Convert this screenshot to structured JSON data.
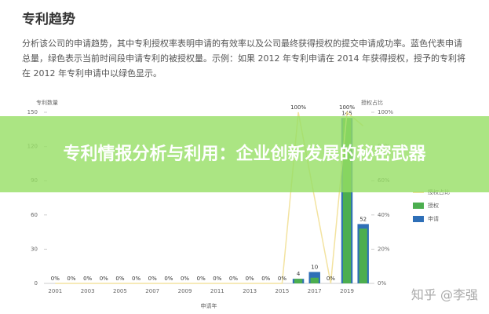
{
  "header": {
    "title": "专利趋势",
    "description": "分析该公司的申请趋势，其中专利授权率表明申请的有效率以及公司最终获得授权的提交申请成功率。蓝色代表申请总量，绿色表示当前时间段申请专利的被授权量。示例：如果 2012 年专利申请在 2014 年获得授权，授予的专利将在 2012 年专利申请中以绿色显示。"
  },
  "banner": "专利情报分析与利用：企业创新发展的秘密武器",
  "watermark": "知乎 @李强",
  "chart_data": {
    "type": "bar-line",
    "ylabel": "专利数量",
    "y2label": "授权占比",
    "xlabel": "申请年",
    "categories": [
      "2001",
      null,
      "2003",
      null,
      "2005",
      null,
      "2007",
      null,
      "2009",
      null,
      "2011",
      null,
      "2013",
      null,
      "2015",
      null,
      "2017",
      null,
      "2019",
      null
    ],
    "ylim": [
      0,
      150
    ],
    "yticks": [
      0,
      30,
      60,
      90,
      120,
      150
    ],
    "y2lim": [
      0,
      100
    ],
    "y2ticks": [
      {
        "value": 0,
        "label": "0%"
      },
      {
        "value": 20,
        "label": "20%"
      },
      {
        "value": 40,
        "label": "40%"
      },
      {
        "value": 60,
        "label": "60%"
      },
      {
        "value": 80,
        "label": "80%"
      },
      {
        "value": 100,
        "label": "100%"
      }
    ],
    "grid": false,
    "series": [
      {
        "name": "授权占比",
        "kind": "line",
        "axis": "y2",
        "color": "#f3e3a0",
        "values": [
          0,
          0,
          0,
          0,
          0,
          0,
          0,
          0,
          0,
          0,
          0,
          0,
          0,
          0,
          0,
          100,
          50,
          0,
          100,
          92
        ],
        "value_labels": [
          "0%",
          "0%",
          "0%",
          "0%",
          "0%",
          "0%",
          "0%",
          "0%",
          "0%",
          "0%",
          "0%",
          "0%",
          "0%",
          "0%",
          "0%",
          "100%",
          null,
          "0%",
          "100%",
          null
        ]
      },
      {
        "name": "授权",
        "kind": "bar",
        "color": "#4cae4f",
        "values": [
          0,
          0,
          0,
          0,
          0,
          0,
          0,
          0,
          0,
          0,
          0,
          0,
          0,
          0,
          0,
          4,
          5,
          0,
          145,
          48
        ]
      },
      {
        "name": "申请",
        "kind": "bar",
        "color": "#2e6fb7",
        "values": [
          0,
          0,
          0,
          0,
          0,
          0,
          0,
          0,
          0,
          0,
          0,
          0,
          0,
          0,
          0,
          4,
          10,
          0,
          145,
          52
        ]
      }
    ]
  }
}
